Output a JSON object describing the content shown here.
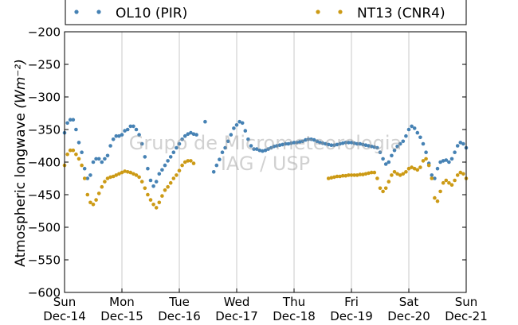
{
  "chart_data": {
    "type": "scatter",
    "title": "",
    "ylabel": "Atmospheric longwave",
    "ylabel_unit": "(Wm⁻²)",
    "ylim": [
      -600,
      -200
    ],
    "yticks": [
      -600,
      -550,
      -500,
      -450,
      -400,
      -350,
      -300,
      -250,
      -200
    ],
    "ytick_labels": [
      "−600",
      "−550",
      "−500",
      "−450",
      "−400",
      "−350",
      "−300",
      "−250",
      "−200"
    ],
    "xlim": [
      0,
      7
    ],
    "xticks": [
      0,
      1,
      2,
      3,
      4,
      5,
      6,
      7
    ],
    "xtick_day": [
      "Sun",
      "Mon",
      "Tue",
      "Wed",
      "Thu",
      "Fri",
      "Sat",
      "Sun"
    ],
    "xtick_date": [
      "Dec-14",
      "Dec-15",
      "Dec-16",
      "Dec-17",
      "Dec-18",
      "Dec-19",
      "Dec-20",
      "Dec-21"
    ],
    "x_grid": true,
    "y_grid": false,
    "legend_position": "top (outside plot)",
    "watermark": [
      "Grupo de Micrometeorologia",
      "IAG / USP"
    ],
    "series": [
      {
        "name": "OL10 (PIR)",
        "color": "#4682b4",
        "points": [
          [
            0.0,
            -355
          ],
          [
            0.05,
            -340
          ],
          [
            0.1,
            -335
          ],
          [
            0.15,
            -335
          ],
          [
            0.2,
            -350
          ],
          [
            0.25,
            -370
          ],
          [
            0.3,
            -385
          ],
          [
            0.35,
            -410
          ],
          [
            0.4,
            -425
          ],
          [
            0.45,
            -420
          ],
          [
            0.5,
            -400
          ],
          [
            0.55,
            -395
          ],
          [
            0.6,
            -395
          ],
          [
            0.65,
            -400
          ],
          [
            0.7,
            -395
          ],
          [
            0.75,
            -390
          ],
          [
            0.8,
            -375
          ],
          [
            0.85,
            -365
          ],
          [
            0.9,
            -360
          ],
          [
            0.95,
            -360
          ],
          [
            1.0,
            -358
          ],
          [
            1.05,
            -352
          ],
          [
            1.1,
            -350
          ],
          [
            1.15,
            -345
          ],
          [
            1.2,
            -345
          ],
          [
            1.25,
            -350
          ],
          [
            1.3,
            -358
          ],
          [
            1.35,
            -372
          ],
          [
            1.4,
            -392
          ],
          [
            1.45,
            -410
          ],
          [
            1.5,
            -428
          ],
          [
            1.55,
            -437
          ],
          [
            1.6,
            -430
          ],
          [
            1.65,
            -418
          ],
          [
            1.7,
            -412
          ],
          [
            1.75,
            -405
          ],
          [
            1.8,
            -398
          ],
          [
            1.85,
            -392
          ],
          [
            1.9,
            -385
          ],
          [
            1.95,
            -378
          ],
          [
            2.0,
            -372
          ],
          [
            2.05,
            -365
          ],
          [
            2.1,
            -360
          ],
          [
            2.15,
            -357
          ],
          [
            2.2,
            -355
          ],
          [
            2.25,
            -357
          ],
          [
            2.3,
            -358
          ],
          [
            2.45,
            -338
          ],
          [
            2.6,
            -415
          ],
          [
            2.65,
            -405
          ],
          [
            2.7,
            -396
          ],
          [
            2.75,
            -385
          ],
          [
            2.8,
            -378
          ],
          [
            2.85,
            -368
          ],
          [
            2.9,
            -358
          ],
          [
            2.95,
            -348
          ],
          [
            3.0,
            -343
          ],
          [
            3.05,
            -338
          ],
          [
            3.1,
            -340
          ],
          [
            3.15,
            -352
          ],
          [
            3.2,
            -365
          ],
          [
            3.25,
            -375
          ],
          [
            3.3,
            -380
          ],
          [
            3.35,
            -380
          ],
          [
            3.4,
            -382
          ],
          [
            3.45,
            -383
          ],
          [
            3.5,
            -382
          ],
          [
            3.55,
            -380
          ],
          [
            3.6,
            -378
          ],
          [
            3.65,
            -376
          ],
          [
            3.7,
            -375
          ],
          [
            3.75,
            -374
          ],
          [
            3.8,
            -373
          ],
          [
            3.85,
            -372
          ],
          [
            3.9,
            -372
          ],
          [
            3.95,
            -371
          ],
          [
            4.0,
            -370
          ],
          [
            4.05,
            -370
          ],
          [
            4.1,
            -369
          ],
          [
            4.15,
            -368
          ],
          [
            4.2,
            -366
          ],
          [
            4.25,
            -365
          ],
          [
            4.3,
            -365
          ],
          [
            4.35,
            -366
          ],
          [
            4.4,
            -368
          ],
          [
            4.45,
            -370
          ],
          [
            4.5,
            -371
          ],
          [
            4.55,
            -372
          ],
          [
            4.6,
            -373
          ],
          [
            4.65,
            -374
          ],
          [
            4.7,
            -374
          ],
          [
            4.75,
            -373
          ],
          [
            4.8,
            -372
          ],
          [
            4.85,
            -371
          ],
          [
            4.9,
            -370
          ],
          [
            4.95,
            -370
          ],
          [
            5.0,
            -370
          ],
          [
            5.05,
            -371
          ],
          [
            5.1,
            -372
          ],
          [
            5.15,
            -372
          ],
          [
            5.2,
            -373
          ],
          [
            5.25,
            -374
          ],
          [
            5.3,
            -375
          ],
          [
            5.35,
            -376
          ],
          [
            5.4,
            -377
          ],
          [
            5.45,
            -378
          ],
          [
            5.5,
            -385
          ],
          [
            5.55,
            -395
          ],
          [
            5.6,
            -403
          ],
          [
            5.65,
            -400
          ],
          [
            5.7,
            -390
          ],
          [
            5.75,
            -382
          ],
          [
            5.8,
            -376
          ],
          [
            5.85,
            -372
          ],
          [
            5.9,
            -368
          ],
          [
            5.95,
            -360
          ],
          [
            6.0,
            -350
          ],
          [
            6.05,
            -345
          ],
          [
            6.1,
            -348
          ],
          [
            6.15,
            -355
          ],
          [
            6.2,
            -362
          ],
          [
            6.25,
            -372
          ],
          [
            6.3,
            -385
          ],
          [
            6.35,
            -402
          ],
          [
            6.4,
            -420
          ],
          [
            6.45,
            -425
          ],
          [
            6.5,
            -410
          ],
          [
            6.55,
            -400
          ],
          [
            6.6,
            -398
          ],
          [
            6.65,
            -397
          ],
          [
            6.7,
            -400
          ],
          [
            6.75,
            -395
          ],
          [
            6.8,
            -385
          ],
          [
            6.85,
            -375
          ],
          [
            6.9,
            -370
          ],
          [
            6.95,
            -372
          ],
          [
            7.0,
            -378
          ]
        ]
      },
      {
        "name": "NT13 (CNR4)",
        "color": "#cc9a15",
        "points": [
          [
            0.0,
            -405
          ],
          [
            0.05,
            -388
          ],
          [
            0.1,
            -382
          ],
          [
            0.15,
            -382
          ],
          [
            0.2,
            -388
          ],
          [
            0.25,
            -395
          ],
          [
            0.3,
            -405
          ],
          [
            0.35,
            -425
          ],
          [
            0.4,
            -450
          ],
          [
            0.45,
            -462
          ],
          [
            0.5,
            -465
          ],
          [
            0.55,
            -458
          ],
          [
            0.6,
            -448
          ],
          [
            0.65,
            -438
          ],
          [
            0.7,
            -430
          ],
          [
            0.75,
            -425
          ],
          [
            0.8,
            -423
          ],
          [
            0.85,
            -422
          ],
          [
            0.9,
            -420
          ],
          [
            0.95,
            -418
          ],
          [
            1.0,
            -416
          ],
          [
            1.05,
            -414
          ],
          [
            1.1,
            -415
          ],
          [
            1.15,
            -416
          ],
          [
            1.2,
            -418
          ],
          [
            1.25,
            -420
          ],
          [
            1.3,
            -423
          ],
          [
            1.35,
            -430
          ],
          [
            1.4,
            -440
          ],
          [
            1.45,
            -450
          ],
          [
            1.5,
            -458
          ],
          [
            1.55,
            -465
          ],
          [
            1.6,
            -470
          ],
          [
            1.65,
            -462
          ],
          [
            1.7,
            -452
          ],
          [
            1.75,
            -443
          ],
          [
            1.8,
            -438
          ],
          [
            1.85,
            -432
          ],
          [
            1.9,
            -425
          ],
          [
            1.95,
            -420
          ],
          [
            2.0,
            -413
          ],
          [
            2.05,
            -405
          ],
          [
            2.1,
            -400
          ],
          [
            2.15,
            -398
          ],
          [
            2.2,
            -398
          ],
          [
            2.25,
            -402
          ],
          [
            4.6,
            -425
          ],
          [
            4.65,
            -424
          ],
          [
            4.7,
            -423
          ],
          [
            4.75,
            -422
          ],
          [
            4.8,
            -422
          ],
          [
            4.85,
            -421
          ],
          [
            4.9,
            -421
          ],
          [
            4.95,
            -420
          ],
          [
            5.0,
            -420
          ],
          [
            5.05,
            -420
          ],
          [
            5.1,
            -420
          ],
          [
            5.15,
            -419
          ],
          [
            5.2,
            -419
          ],
          [
            5.25,
            -418
          ],
          [
            5.3,
            -417
          ],
          [
            5.35,
            -416
          ],
          [
            5.4,
            -416
          ],
          [
            5.45,
            -425
          ],
          [
            5.5,
            -440
          ],
          [
            5.55,
            -445
          ],
          [
            5.6,
            -440
          ],
          [
            5.65,
            -430
          ],
          [
            5.7,
            -420
          ],
          [
            5.75,
            -415
          ],
          [
            5.8,
            -418
          ],
          [
            5.85,
            -420
          ],
          [
            5.9,
            -418
          ],
          [
            5.95,
            -415
          ],
          [
            6.0,
            -410
          ],
          [
            6.05,
            -408
          ],
          [
            6.1,
            -410
          ],
          [
            6.15,
            -412
          ],
          [
            6.2,
            -408
          ],
          [
            6.25,
            -398
          ],
          [
            6.3,
            -395
          ],
          [
            6.35,
            -405
          ],
          [
            6.4,
            -425
          ],
          [
            6.45,
            -455
          ],
          [
            6.5,
            -460
          ],
          [
            6.55,
            -445
          ],
          [
            6.6,
            -432
          ],
          [
            6.65,
            -428
          ],
          [
            6.7,
            -432
          ],
          [
            6.75,
            -435
          ],
          [
            6.8,
            -428
          ],
          [
            6.85,
            -420
          ],
          [
            6.9,
            -416
          ],
          [
            6.95,
            -418
          ],
          [
            7.0,
            -425
          ]
        ]
      }
    ]
  }
}
